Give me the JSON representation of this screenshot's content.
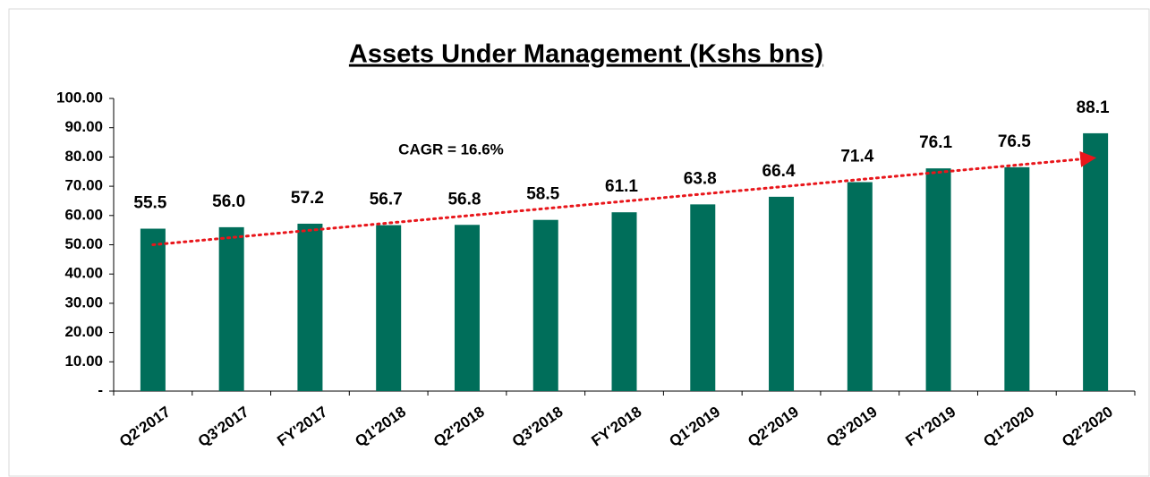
{
  "chart_data": {
    "type": "bar",
    "title": "Assets Under Management (Kshs bns)",
    "categories": [
      "Q2'2017",
      "Q3'2017",
      "FY'2017",
      "Q1'2018",
      "Q2'2018",
      "Q3'2018",
      "FY'2018",
      "Q1'2019",
      "Q2'2019",
      "Q3'2019",
      "FY'2019",
      "Q1'2020",
      "Q2'2020"
    ],
    "values": [
      55.5,
      56.0,
      57.2,
      56.7,
      56.8,
      58.5,
      61.1,
      63.8,
      66.4,
      71.4,
      76.1,
      76.5,
      88.1
    ],
    "value_labels": [
      "55.5",
      "56.0",
      "57.2",
      "56.7",
      "56.8",
      "58.5",
      "61.1",
      "63.8",
      "66.4",
      "71.4",
      "76.1",
      "76.5",
      "88.1"
    ],
    "color": "#006e5a",
    "ylim": [
      0,
      100
    ],
    "yticks": [
      {
        "value": 0,
        "label": "-"
      },
      {
        "value": 10,
        "label": "10.00"
      },
      {
        "value": 20,
        "label": "20.00"
      },
      {
        "value": 30,
        "label": "30.00"
      },
      {
        "value": 40,
        "label": "40.00"
      },
      {
        "value": 50,
        "label": "50.00"
      },
      {
        "value": 60,
        "label": "60.00"
      },
      {
        "value": 70,
        "label": "70.00"
      },
      {
        "value": 80,
        "label": "80.00"
      },
      {
        "value": 90,
        "label": "90.00"
      },
      {
        "value": 100,
        "label": "100.00"
      }
    ],
    "annotation": "CAGR = 16.6%",
    "trend": {
      "start": 50,
      "end": 79.5,
      "color": "#e8161b"
    }
  }
}
